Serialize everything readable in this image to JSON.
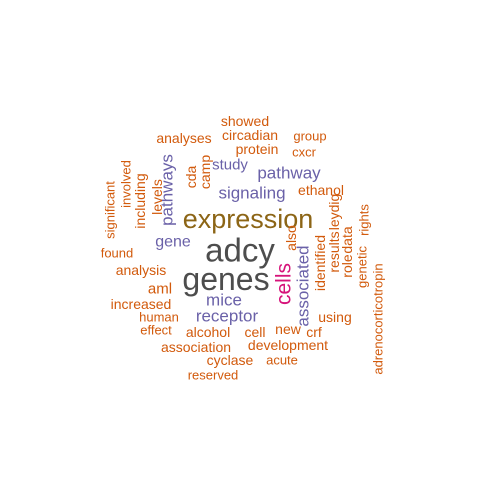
{
  "palette": {
    "top": "#4d4d4d",
    "accent": "#8c6516",
    "magenta": "#d6137a",
    "purple": "#6a61a8",
    "orange": "#d25a0c"
  },
  "chart_data": {
    "type": "wordcloud",
    "words": [
      {
        "text": "adcy",
        "weight": 100,
        "color": "top"
      },
      {
        "text": "genes",
        "weight": 98,
        "color": "top"
      },
      {
        "text": "expression",
        "weight": 70,
        "color": "accent"
      },
      {
        "text": "cells",
        "weight": 50,
        "color": "magenta"
      },
      {
        "text": "mice",
        "weight": 40,
        "color": "purple"
      },
      {
        "text": "receptor",
        "weight": 40,
        "color": "purple"
      },
      {
        "text": "associated",
        "weight": 40,
        "color": "purple"
      },
      {
        "text": "pathway",
        "weight": 40,
        "color": "purple"
      },
      {
        "text": "signaling",
        "weight": 40,
        "color": "purple"
      },
      {
        "text": "pathways",
        "weight": 40,
        "color": "purple"
      },
      {
        "text": "gene",
        "weight": 38,
        "color": "purple"
      },
      {
        "text": "study",
        "weight": 36,
        "color": "purple"
      },
      {
        "text": "ethanol",
        "weight": 30,
        "color": "orange"
      },
      {
        "text": "aml",
        "weight": 30,
        "color": "orange"
      },
      {
        "text": "alcohol",
        "weight": 30,
        "color": "orange"
      },
      {
        "text": "analysis",
        "weight": 28,
        "color": "orange"
      },
      {
        "text": "increased",
        "weight": 28,
        "color": "orange"
      },
      {
        "text": "association",
        "weight": 28,
        "color": "orange"
      },
      {
        "text": "development",
        "weight": 28,
        "color": "orange"
      },
      {
        "text": "cyclase",
        "weight": 26,
        "color": "orange"
      },
      {
        "text": "protein",
        "weight": 26,
        "color": "orange"
      },
      {
        "text": "showed",
        "weight": 26,
        "color": "orange"
      },
      {
        "text": "circadian",
        "weight": 26,
        "color": "orange"
      },
      {
        "text": "analyses",
        "weight": 26,
        "color": "orange"
      },
      {
        "text": "group",
        "weight": 24,
        "color": "orange"
      },
      {
        "text": "cxcr",
        "weight": 24,
        "color": "orange"
      },
      {
        "text": "camp",
        "weight": 26,
        "color": "orange"
      },
      {
        "text": "cda",
        "weight": 26,
        "color": "orange"
      },
      {
        "text": "levels",
        "weight": 26,
        "color": "orange"
      },
      {
        "text": "including",
        "weight": 26,
        "color": "orange"
      },
      {
        "text": "involved",
        "weight": 24,
        "color": "orange"
      },
      {
        "text": "significant",
        "weight": 24,
        "color": "orange"
      },
      {
        "text": "found",
        "weight": 24,
        "color": "orange"
      },
      {
        "text": "human",
        "weight": 24,
        "color": "orange"
      },
      {
        "text": "effect",
        "weight": 24,
        "color": "orange"
      },
      {
        "text": "cell",
        "weight": 26,
        "color": "orange"
      },
      {
        "text": "new",
        "weight": 26,
        "color": "orange"
      },
      {
        "text": "crf",
        "weight": 26,
        "color": "orange"
      },
      {
        "text": "using",
        "weight": 26,
        "color": "orange"
      },
      {
        "text": "acute",
        "weight": 24,
        "color": "orange"
      },
      {
        "text": "reserved",
        "weight": 24,
        "color": "orange"
      },
      {
        "text": "also",
        "weight": 26,
        "color": "orange"
      },
      {
        "text": "identified",
        "weight": 26,
        "color": "orange"
      },
      {
        "text": "results",
        "weight": 26,
        "color": "orange"
      },
      {
        "text": "leydig",
        "weight": 26,
        "color": "orange"
      },
      {
        "text": "role",
        "weight": 26,
        "color": "orange"
      },
      {
        "text": "data",
        "weight": 26,
        "color": "orange"
      },
      {
        "text": "genetic",
        "weight": 24,
        "color": "orange"
      },
      {
        "text": "rights",
        "weight": 24,
        "color": "orange"
      },
      {
        "text": "adrenocorticotropin",
        "weight": 24,
        "color": "orange"
      }
    ]
  }
}
